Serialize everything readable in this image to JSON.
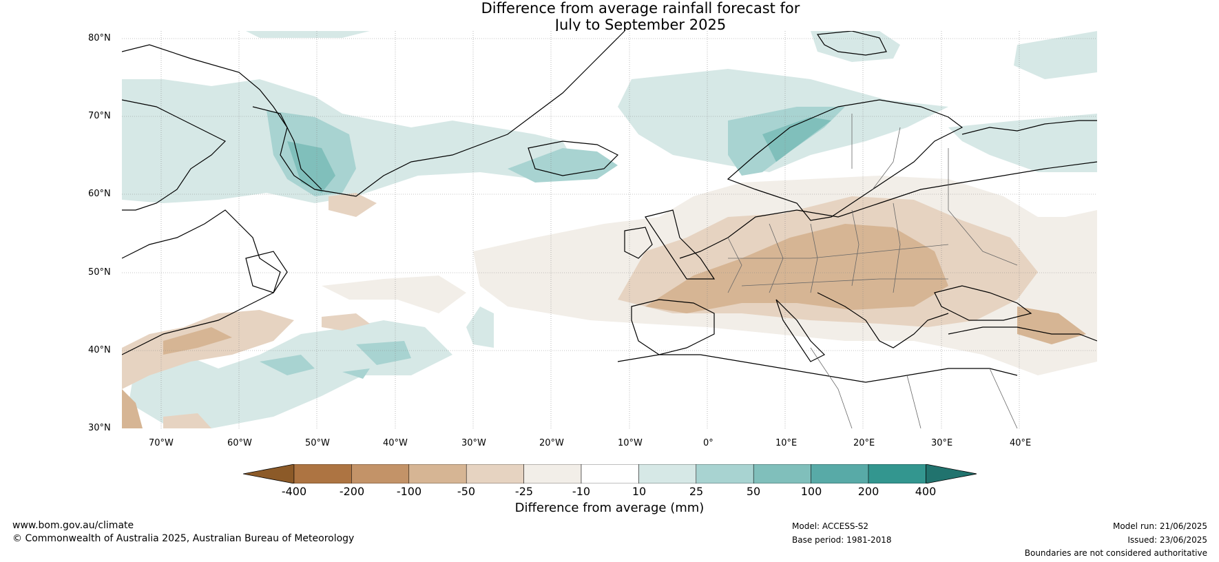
{
  "title": {
    "line1": "Difference from average rainfall forecast for",
    "line2": "July to September 2025"
  },
  "map": {
    "lat_labels": [
      "80°N",
      "70°N",
      "60°N",
      "50°N",
      "40°N",
      "30°N"
    ],
    "lon_labels": [
      "70°W",
      "60°W",
      "50°W",
      "40°W",
      "30°W",
      "20°W",
      "10°W",
      "0°",
      "10°E",
      "20°E",
      "30°E",
      "40°E"
    ]
  },
  "colorbar": {
    "ticks": [
      "-400",
      "-200",
      "-100",
      "-50",
      "-25",
      "-10",
      "10",
      "25",
      "50",
      "100",
      "200",
      "400"
    ],
    "label": "Difference from average (mm)",
    "colors": [
      "#8c5a28",
      "#ad7442",
      "#c39368",
      "#d6b594",
      "#e6d3c1",
      "#f2eee8",
      "#ffffff",
      "#d6e8e6",
      "#a8d3d1",
      "#80bfbb",
      "#58aaa7",
      "#33968f",
      "#21736e"
    ]
  },
  "footer": {
    "website": "www.bom.gov.au/climate",
    "copyright": "© Commonwealth of Australia 2025, Australian Bureau of Meteorology",
    "model": "Model: ACCESS-S2",
    "base_period": "Base period: 1981-2018",
    "model_run": "Model run: 21/06/2025",
    "issued": "Issued: 23/06/2025",
    "disclaimer": "Boundaries are not considered authoritative"
  }
}
